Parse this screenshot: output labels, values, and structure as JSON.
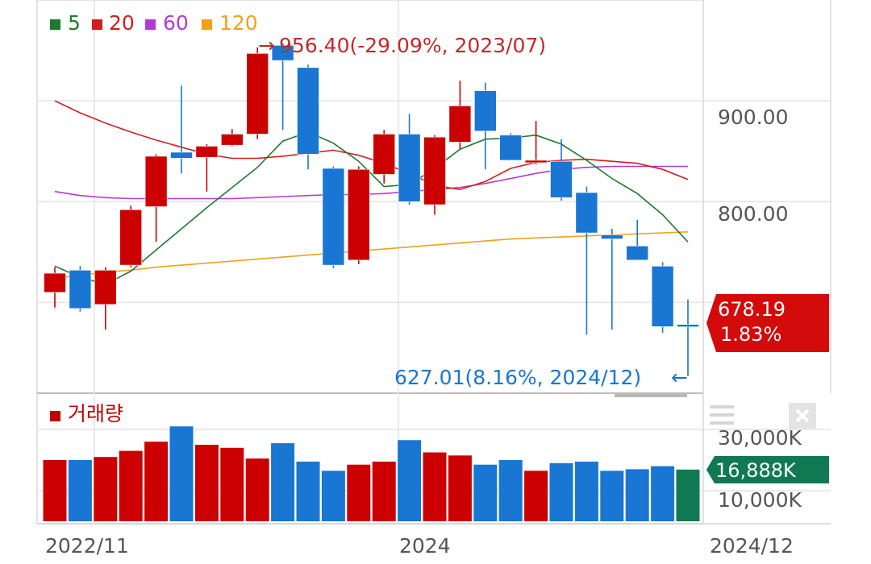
{
  "chart_data": {
    "type": "candlestick",
    "legend": [
      {
        "label": "5",
        "color": "#1e7a2e"
      },
      {
        "label": "20",
        "color": "#d11f1f"
      },
      {
        "label": "60",
        "color": "#b43ad6"
      },
      {
        "label": "120",
        "color": "#f0a11c"
      }
    ],
    "x_ticks": [
      "2022/11",
      "2024",
      "2024/12"
    ],
    "y_ticks": [
      "900.00",
      "800.00"
    ],
    "ylim": [
      610,
      1000
    ],
    "high_annotation": {
      "value": 956.4,
      "text": "956.40(-29.09%, 2023/07)",
      "arrow": "→",
      "color": "#c62828"
    },
    "low_annotation": {
      "value": 627.01,
      "text": "627.01(8.16%, 2024/12)",
      "arrow": "←",
      "color": "#1976d2"
    },
    "current_price": {
      "value": "678.19",
      "change": "1.83%",
      "color": "#d30b0b"
    },
    "candles": [
      {
        "o": 710,
        "h": 735,
        "l": 695,
        "c": 729,
        "dir": "up"
      },
      {
        "o": 732,
        "h": 736,
        "l": 691,
        "c": 694,
        "dir": "down"
      },
      {
        "o": 698,
        "h": 735,
        "l": 673,
        "c": 732,
        "dir": "up"
      },
      {
        "o": 737,
        "h": 796,
        "l": 735,
        "c": 792,
        "dir": "up"
      },
      {
        "o": 795,
        "h": 847,
        "l": 760,
        "c": 845,
        "dir": "up"
      },
      {
        "o": 849,
        "h": 915,
        "l": 828,
        "c": 843,
        "dir": "down"
      },
      {
        "o": 844,
        "h": 857,
        "l": 810,
        "c": 855,
        "dir": "up"
      },
      {
        "o": 856,
        "h": 872,
        "l": 855,
        "c": 867,
        "dir": "up"
      },
      {
        "o": 867,
        "h": 953,
        "l": 862,
        "c": 947,
        "dir": "up"
      },
      {
        "o": 955,
        "h": 957,
        "l": 871,
        "c": 940,
        "dir": "down"
      },
      {
        "o": 933,
        "h": 936,
        "l": 832,
        "c": 847,
        "dir": "down"
      },
      {
        "o": 833,
        "h": 835,
        "l": 734,
        "c": 737,
        "dir": "down"
      },
      {
        "o": 742,
        "h": 835,
        "l": 738,
        "c": 832,
        "dir": "up"
      },
      {
        "o": 827,
        "h": 871,
        "l": 818,
        "c": 867,
        "dir": "up"
      },
      {
        "o": 867,
        "h": 887,
        "l": 797,
        "c": 800,
        "dir": "down"
      },
      {
        "o": 797,
        "h": 866,
        "l": 787,
        "c": 864,
        "dir": "up"
      },
      {
        "o": 859,
        "h": 920,
        "l": 852,
        "c": 895,
        "dir": "up"
      },
      {
        "o": 910,
        "h": 918,
        "l": 832,
        "c": 870,
        "dir": "down"
      },
      {
        "o": 866,
        "h": 868,
        "l": 842,
        "c": 841,
        "dir": "down"
      },
      {
        "o": 841,
        "h": 880,
        "l": 837,
        "c": 839,
        "dir": "up"
      },
      {
        "o": 840,
        "h": 862,
        "l": 801,
        "c": 804,
        "dir": "down"
      },
      {
        "o": 809,
        "h": 815,
        "l": 668,
        "c": 769,
        "dir": "down"
      },
      {
        "o": 767,
        "h": 773,
        "l": 673,
        "c": 763,
        "dir": "down"
      },
      {
        "o": 756,
        "h": 782,
        "l": 745,
        "c": 742,
        "dir": "down"
      },
      {
        "o": 736,
        "h": 740,
        "l": 670,
        "c": 676,
        "dir": "down"
      },
      {
        "o": 678,
        "h": 703,
        "l": 627,
        "c": 678.19,
        "dir": "down"
      }
    ],
    "ma": {
      "ma5": [
        736,
        725,
        718,
        731,
        752,
        773,
        794,
        814,
        834,
        860,
        869,
        858,
        840,
        815,
        817,
        833,
        852,
        862,
        863,
        866,
        857,
        841,
        823,
        808,
        787,
        760
      ],
      "ma20": [
        900,
        888,
        878,
        869,
        861,
        854,
        847,
        843,
        843,
        845,
        848,
        851,
        846,
        838,
        828,
        816,
        812,
        820,
        833,
        839,
        841,
        842,
        840,
        838,
        832,
        822
      ],
      "ma60": [
        810,
        806,
        804,
        803,
        803,
        803,
        803,
        803,
        804,
        805,
        806,
        807,
        807,
        808,
        810,
        812,
        814,
        818,
        823,
        828,
        832,
        834,
        835,
        835,
        835,
        835
      ],
      "ma120": [
        724,
        727,
        730,
        732,
        735,
        737,
        739,
        741,
        743,
        745,
        747,
        749,
        751,
        753,
        755,
        757,
        759,
        761,
        763,
        764,
        765,
        766,
        767,
        768,
        769,
        770
      ]
    },
    "volume": {
      "label": "거래량",
      "y_ticks": [
        "30,000K",
        "10,000K"
      ],
      "ylim": [
        0,
        40000
      ],
      "values": [
        20000,
        20000,
        21000,
        23000,
        26000,
        31000,
        25000,
        24000,
        20500,
        25500,
        19500,
        16500,
        18500,
        19500,
        26500,
        22500,
        21500,
        18500,
        20000,
        16500,
        19000,
        19500,
        16500,
        17000,
        18000,
        16888
      ],
      "current": "16,888K",
      "current_color": "#0f7a52"
    },
    "colors": {
      "up": "#cc0000",
      "down": "#1976d2",
      "last_volume": "#0f7a52"
    }
  }
}
